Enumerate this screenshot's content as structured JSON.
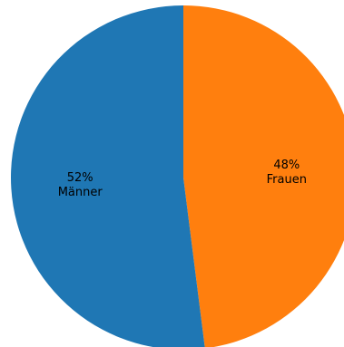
{
  "chart_data": {
    "type": "pie",
    "title": "",
    "start_angle_deg": 90,
    "direction": "clockwise",
    "legend": "none",
    "slices": [
      {
        "label": "Frauen",
        "value": 48,
        "percent_text": "48%",
        "color": "#ff7f0e"
      },
      {
        "label": "Männer",
        "value": 52,
        "percent_text": "52%",
        "color": "#1f77b4"
      }
    ]
  }
}
